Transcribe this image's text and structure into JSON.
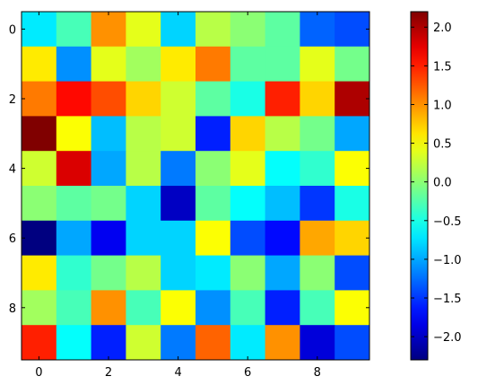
{
  "chart_data": {
    "type": "heatmap",
    "title": "",
    "xlabel": "",
    "ylabel": "",
    "colormap": "jet",
    "grid": false,
    "vmin": -2.3,
    "vmax": 2.2,
    "x_ticks": [
      0,
      2,
      4,
      6,
      8
    ],
    "y_ticks": [
      0,
      2,
      4,
      6,
      8
    ],
    "colorbar_ticks": [
      2.0,
      1.5,
      1.0,
      0.5,
      0.0,
      -0.5,
      -1.0,
      -1.5,
      -2.0
    ],
    "colorbar_tick_labels": [
      "2.0",
      "1.5",
      "1.0",
      "0.5",
      "0.0",
      "−0.5",
      "−1.0",
      "−1.5",
      "−2.0"
    ],
    "values": [
      [
        -0.7,
        -0.3,
        1.0,
        0.4,
        -0.8,
        0.2,
        0.0,
        -0.2,
        -1.3,
        -1.4
      ],
      [
        0.6,
        -1.1,
        0.4,
        0.1,
        0.6,
        1.1,
        -0.2,
        -0.2,
        0.4,
        -0.1
      ],
      [
        1.1,
        1.6,
        1.3,
        0.7,
        0.3,
        -0.2,
        -0.5,
        1.5,
        0.7,
        2.0
      ],
      [
        2.2,
        0.5,
        -0.9,
        0.2,
        0.3,
        -1.6,
        0.7,
        0.2,
        -0.1,
        -1.0
      ],
      [
        0.3,
        1.8,
        -1.0,
        0.2,
        -1.2,
        0.0,
        0.4,
        -0.6,
        -0.4,
        0.5
      ],
      [
        0.0,
        -0.2,
        -0.1,
        -0.8,
        -2.0,
        -0.2,
        -0.6,
        -0.9,
        -1.5,
        -0.5
      ],
      [
        -2.3,
        -1.0,
        -1.8,
        -0.8,
        -0.8,
        0.5,
        -1.4,
        -1.7,
        0.9,
        0.7
      ],
      [
        0.6,
        -0.4,
        -0.1,
        0.2,
        -0.8,
        -0.7,
        0.0,
        -1.0,
        0.0,
        -1.4
      ],
      [
        0.1,
        -0.3,
        1.0,
        -0.3,
        0.5,
        -1.1,
        -0.3,
        -1.6,
        -0.3,
        0.5
      ],
      [
        1.5,
        -0.6,
        -1.6,
        0.3,
        -1.2,
        1.2,
        -0.7,
        1.0,
        -1.9,
        -1.4
      ]
    ]
  }
}
